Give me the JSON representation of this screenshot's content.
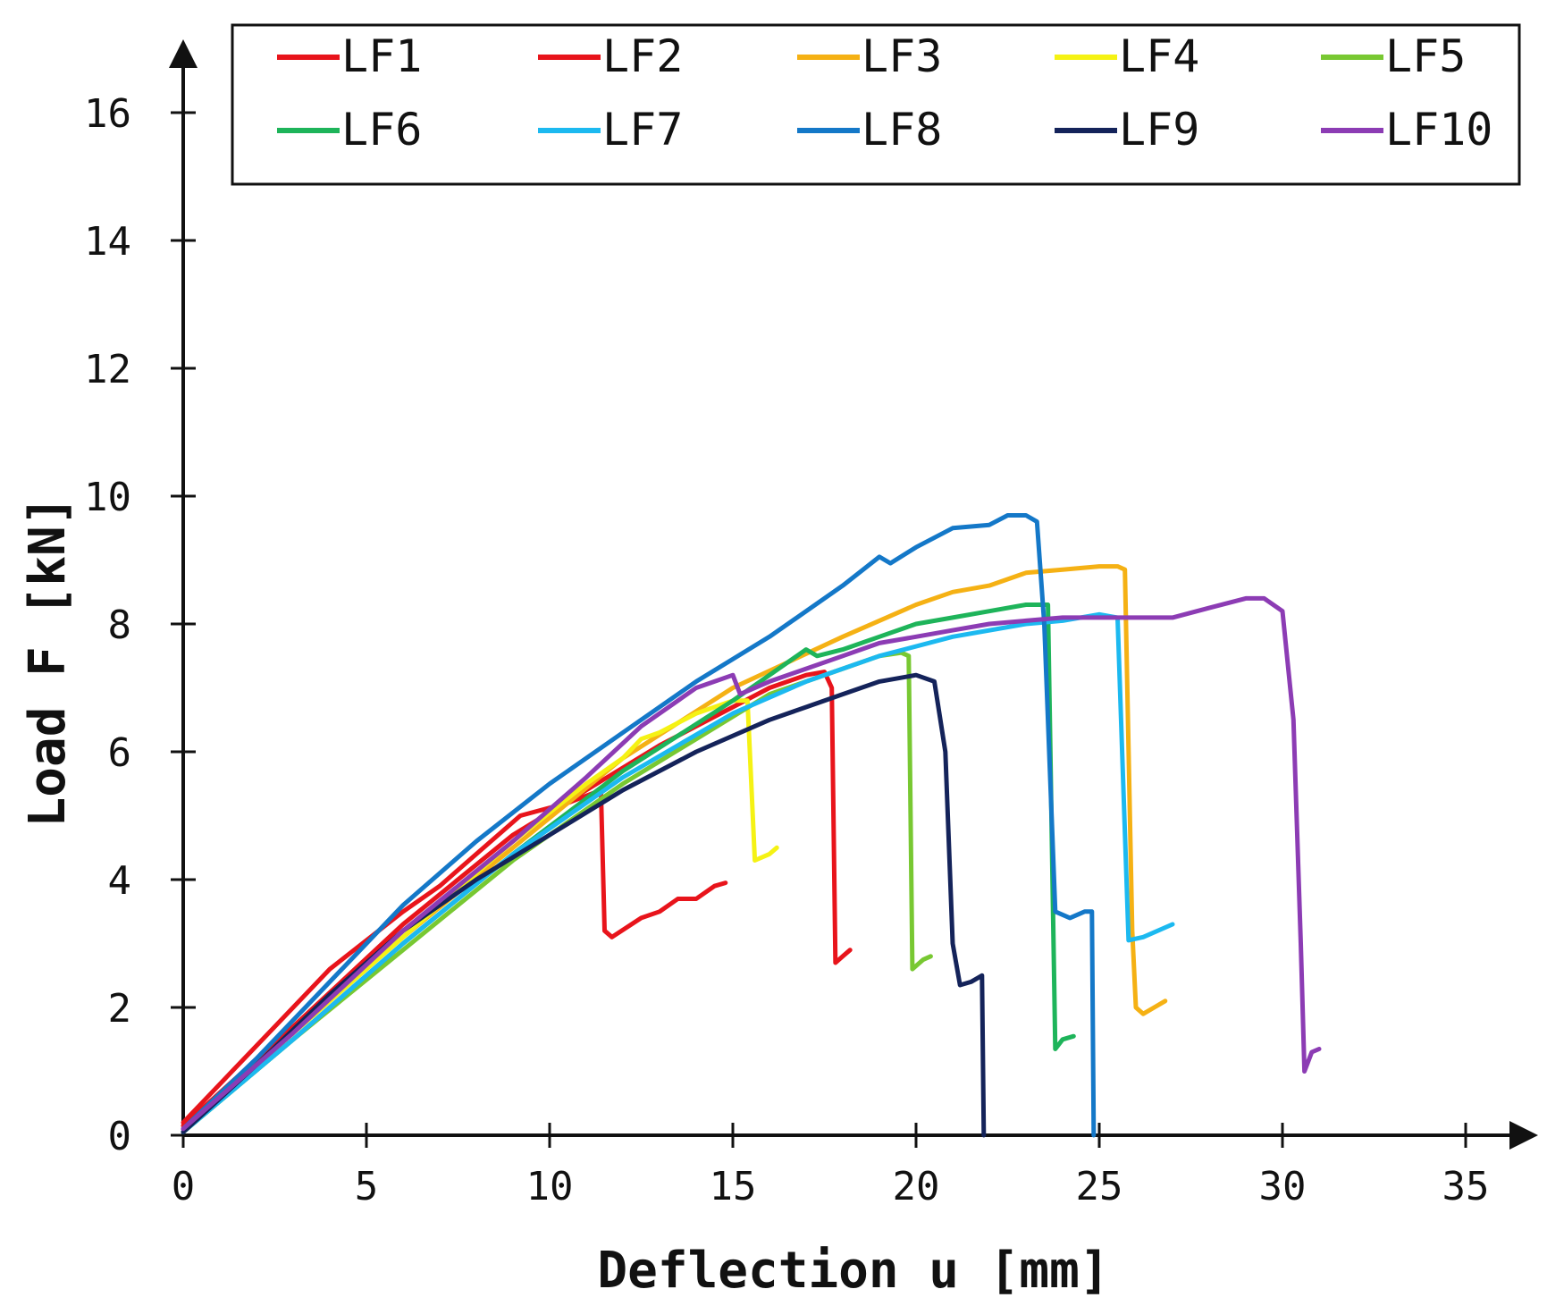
{
  "chart_data": {
    "type": "line",
    "title": "",
    "xlabel": "Deflection u [mm]",
    "ylabel": "Load F [kN]",
    "xlim": [
      0,
      36
    ],
    "ylim": [
      0,
      16.5
    ],
    "xticks": [
      0,
      5,
      10,
      15,
      20,
      25,
      30,
      35
    ],
    "yticks": [
      0,
      2,
      4,
      6,
      8,
      10,
      12,
      14,
      16
    ],
    "legend_position": "top",
    "series": [
      {
        "name": "LF1",
        "color": "#e8141b",
        "points": [
          [
            0,
            0.2
          ],
          [
            2,
            1.4
          ],
          [
            4,
            2.6
          ],
          [
            6,
            3.5
          ],
          [
            7,
            3.9
          ],
          [
            8,
            4.4
          ],
          [
            9,
            4.9
          ],
          [
            9.2,
            5.0
          ],
          [
            10.5,
            5.2
          ],
          [
            11.4,
            5.4
          ],
          [
            11.5,
            3.2
          ],
          [
            11.7,
            3.1
          ],
          [
            12.5,
            3.4
          ],
          [
            13,
            3.5
          ],
          [
            13.5,
            3.7
          ],
          [
            14,
            3.7
          ],
          [
            14.5,
            3.9
          ],
          [
            14.8,
            3.95
          ]
        ]
      },
      {
        "name": "LF2",
        "color": "#e8141b",
        "points": [
          [
            0,
            0.15
          ],
          [
            3,
            1.7
          ],
          [
            6,
            3.3
          ],
          [
            9,
            4.7
          ],
          [
            11,
            5.4
          ],
          [
            13,
            6.1
          ],
          [
            15,
            6.7
          ],
          [
            16,
            7.0
          ],
          [
            17,
            7.2
          ],
          [
            17.5,
            7.25
          ],
          [
            17.7,
            7.0
          ],
          [
            17.8,
            2.7
          ],
          [
            18,
            2.8
          ],
          [
            18.2,
            2.9
          ]
        ]
      },
      {
        "name": "LF3",
        "color": "#f5b114",
        "points": [
          [
            0,
            0.1
          ],
          [
            3,
            1.6
          ],
          [
            6,
            3.1
          ],
          [
            9,
            4.5
          ],
          [
            12,
            5.9
          ],
          [
            15,
            7.0
          ],
          [
            18,
            7.8
          ],
          [
            20,
            8.3
          ],
          [
            21,
            8.5
          ],
          [
            22,
            8.6
          ],
          [
            23,
            8.8
          ],
          [
            24,
            8.85
          ],
          [
            25,
            8.9
          ],
          [
            25.5,
            8.9
          ],
          [
            25.7,
            8.85
          ],
          [
            25.9,
            3.2
          ],
          [
            26,
            2.0
          ],
          [
            26.2,
            1.9
          ],
          [
            26.5,
            2.0
          ],
          [
            26.8,
            2.1
          ]
        ]
      },
      {
        "name": "LF4",
        "color": "#f5f214",
        "points": [
          [
            0,
            0.1
          ],
          [
            3,
            1.6
          ],
          [
            6,
            3.1
          ],
          [
            9,
            4.6
          ],
          [
            11,
            5.5
          ],
          [
            12,
            5.9
          ],
          [
            12.5,
            6.2
          ],
          [
            13,
            6.3
          ],
          [
            14,
            6.6
          ],
          [
            15,
            6.8
          ],
          [
            15.4,
            6.8
          ],
          [
            15.6,
            4.3
          ],
          [
            16,
            4.4
          ],
          [
            16.2,
            4.5
          ]
        ]
      },
      {
        "name": "LF5",
        "color": "#78c832",
        "points": [
          [
            0,
            0.05
          ],
          [
            3,
            1.5
          ],
          [
            6,
            2.9
          ],
          [
            9,
            4.3
          ],
          [
            12,
            5.5
          ],
          [
            14,
            6.2
          ],
          [
            16,
            6.9
          ],
          [
            17,
            7.1
          ],
          [
            18,
            7.3
          ],
          [
            19,
            7.5
          ],
          [
            19.6,
            7.55
          ],
          [
            19.8,
            7.5
          ],
          [
            19.9,
            2.6
          ],
          [
            20.2,
            2.75
          ],
          [
            20.4,
            2.8
          ]
        ]
      },
      {
        "name": "LF6",
        "color": "#1eb45a",
        "points": [
          [
            0,
            0.05
          ],
          [
            3,
            1.5
          ],
          [
            6,
            3.0
          ],
          [
            9,
            4.4
          ],
          [
            12,
            5.7
          ],
          [
            15,
            6.8
          ],
          [
            17,
            7.6
          ],
          [
            17.3,
            7.5
          ],
          [
            18,
            7.6
          ],
          [
            19,
            7.8
          ],
          [
            20,
            8.0
          ],
          [
            21,
            8.1
          ],
          [
            22,
            8.2
          ],
          [
            23,
            8.3
          ],
          [
            23.6,
            8.3
          ],
          [
            23.8,
            1.35
          ],
          [
            24,
            1.5
          ],
          [
            24.3,
            1.55
          ]
        ]
      },
      {
        "name": "LF7",
        "color": "#1cb9f0",
        "points": [
          [
            0,
            0.05
          ],
          [
            3,
            1.5
          ],
          [
            6,
            3.0
          ],
          [
            9,
            4.4
          ],
          [
            12,
            5.6
          ],
          [
            15,
            6.6
          ],
          [
            17,
            7.1
          ],
          [
            19,
            7.5
          ],
          [
            21,
            7.8
          ],
          [
            23,
            8.0
          ],
          [
            24,
            8.05
          ],
          [
            25,
            8.15
          ],
          [
            25.5,
            8.1
          ],
          [
            25.8,
            3.05
          ],
          [
            26.2,
            3.1
          ],
          [
            27,
            3.3
          ]
        ]
      },
      {
        "name": "LF8",
        "color": "#1478c8",
        "points": [
          [
            0,
            0.1
          ],
          [
            2,
            1.2
          ],
          [
            4,
            2.4
          ],
          [
            6,
            3.6
          ],
          [
            8,
            4.6
          ],
          [
            10,
            5.5
          ],
          [
            12,
            6.3
          ],
          [
            14,
            7.1
          ],
          [
            16,
            7.8
          ],
          [
            18,
            8.6
          ],
          [
            19,
            9.05
          ],
          [
            19.3,
            8.95
          ],
          [
            20,
            9.2
          ],
          [
            21,
            9.5
          ],
          [
            22,
            9.55
          ],
          [
            22.5,
            9.7
          ],
          [
            23,
            9.7
          ],
          [
            23.3,
            9.6
          ],
          [
            23.5,
            8.0
          ],
          [
            23.8,
            3.5
          ],
          [
            24.2,
            3.4
          ],
          [
            24.6,
            3.5
          ],
          [
            24.8,
            3.5
          ],
          [
            24.85,
            0
          ]
        ]
      },
      {
        "name": "LF9",
        "color": "#14235a",
        "points": [
          [
            0,
            0.05
          ],
          [
            2,
            1.1
          ],
          [
            4,
            2.2
          ],
          [
            6,
            3.2
          ],
          [
            8,
            4.0
          ],
          [
            10,
            4.7
          ],
          [
            12,
            5.4
          ],
          [
            14,
            6.0
          ],
          [
            16,
            6.5
          ],
          [
            17,
            6.7
          ],
          [
            18,
            6.9
          ],
          [
            19,
            7.1
          ],
          [
            20,
            7.2
          ],
          [
            20.5,
            7.1
          ],
          [
            20.8,
            6.0
          ],
          [
            21,
            3.0
          ],
          [
            21.2,
            2.35
          ],
          [
            21.5,
            2.4
          ],
          [
            21.8,
            2.5
          ],
          [
            21.85,
            0
          ]
        ]
      },
      {
        "name": "LF10",
        "color": "#8c3cb4",
        "points": [
          [
            0,
            0.1
          ],
          [
            3,
            1.6
          ],
          [
            6,
            3.2
          ],
          [
            9,
            4.6
          ],
          [
            11,
            5.6
          ],
          [
            12.5,
            6.4
          ],
          [
            14,
            7.0
          ],
          [
            15,
            7.2
          ],
          [
            15.2,
            6.9
          ],
          [
            16,
            7.1
          ],
          [
            17,
            7.3
          ],
          [
            18,
            7.5
          ],
          [
            19,
            7.7
          ],
          [
            20,
            7.8
          ],
          [
            21,
            7.9
          ],
          [
            22,
            8.0
          ],
          [
            23,
            8.05
          ],
          [
            24,
            8.1
          ],
          [
            25,
            8.1
          ],
          [
            26,
            8.1
          ],
          [
            27,
            8.1
          ],
          [
            28,
            8.25
          ],
          [
            29,
            8.4
          ],
          [
            29.5,
            8.4
          ],
          [
            30,
            8.2
          ],
          [
            30.3,
            6.5
          ],
          [
            30.5,
            3.0
          ],
          [
            30.6,
            1.0
          ],
          [
            30.8,
            1.3
          ],
          [
            31,
            1.35
          ]
        ]
      }
    ]
  }
}
